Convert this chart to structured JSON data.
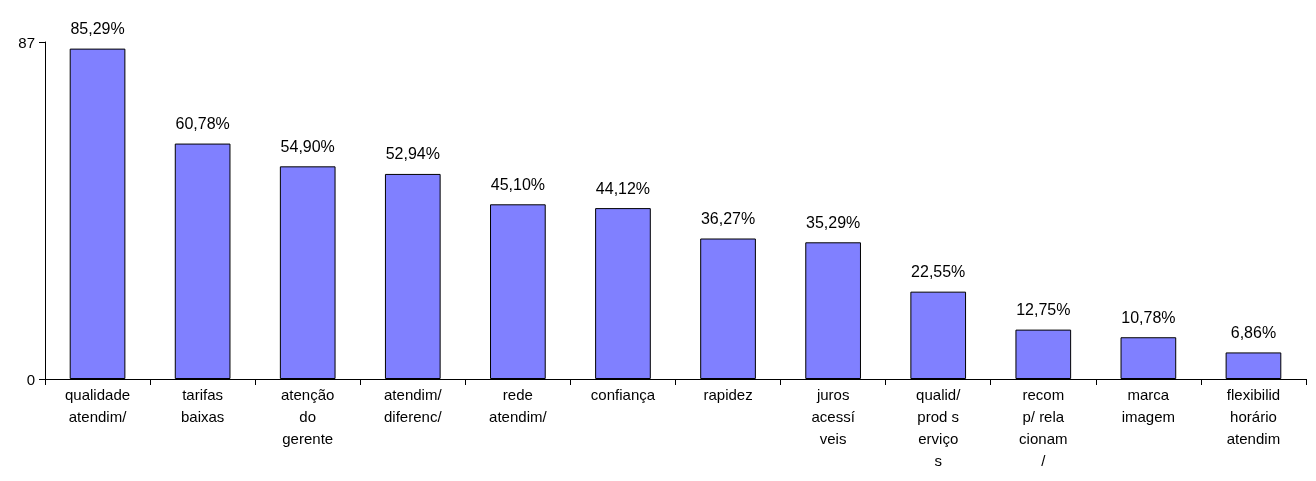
{
  "chart_data": {
    "type": "bar",
    "categories": [
      "qualidade\natendim/",
      "tarifas\nbaixas",
      "atenção\ndo\ngerente",
      "atendim/\ndiferenc/",
      "rede\natendim/",
      "confiança",
      "rapidez",
      "juros\nacessí\nveis",
      "qualid/\nprod s\nerviço\ns",
      "recom\np/ rela\ncionam\n/",
      "marca\nimagem",
      "flexibilid\nhorário\natendim"
    ],
    "values": [
      85.29,
      60.78,
      54.9,
      52.94,
      45.1,
      44.12,
      36.27,
      35.29,
      22.55,
      12.75,
      10.78,
      6.86
    ],
    "value_labels": [
      "85,29%",
      "60,78%",
      "54,90%",
      "52,94%",
      "45,10%",
      "44,12%",
      "36,27%",
      "35,29%",
      "22,55%",
      "12,75%",
      "10,78%",
      "6,86%"
    ],
    "color": "#8080ff",
    "ylim": [
      0,
      87
    ],
    "yticks": [
      0,
      87
    ],
    "grid": false
  }
}
